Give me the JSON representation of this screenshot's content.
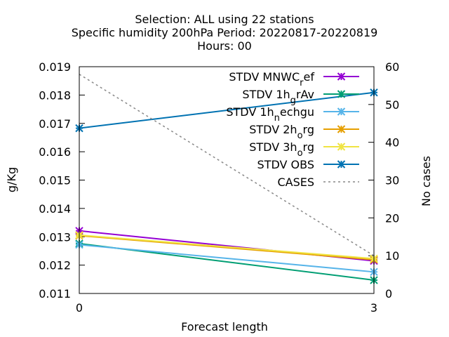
{
  "chart_data": {
    "type": "line",
    "title_lines": [
      "Selection: ALL using    22 stations",
      "Specific humidity 200hPa   Period: 20220817-20220819",
      "Hours:  00"
    ],
    "xlabel": "Forecast length",
    "ylabel": "g/Kg",
    "y2label": "No cases",
    "x": [
      0,
      3
    ],
    "xticks": [
      "0",
      "3"
    ],
    "xlim": [
      0,
      3
    ],
    "ylim": [
      0.011,
      0.019
    ],
    "yticks": [
      "0.011",
      "0.012",
      "0.013",
      "0.014",
      "0.015",
      "0.016",
      "0.017",
      "0.018",
      "0.019"
    ],
    "y2lim": [
      0,
      60
    ],
    "y2ticks": [
      "0",
      "10",
      "20",
      "30",
      "40",
      "50",
      "60"
    ],
    "grid": false,
    "legend_position": "top-right",
    "series": [
      {
        "legend": {
          "base": "STDV MNWC",
          "sub": "r",
          "tail": "ef"
        },
        "color": "#9400d3",
        "marker": "x-star",
        "axis": "y1",
        "values": [
          0.01321,
          0.01215
        ]
      },
      {
        "legend": {
          "base": "STDV 1h",
          "sub": "g",
          "tail": "rAv"
        },
        "color": "#009e73",
        "marker": "x-star",
        "axis": "y1",
        "values": [
          0.01276,
          0.01147
        ]
      },
      {
        "legend": {
          "base": "STDV 1h",
          "sub": "n",
          "tail": "echgu"
        },
        "color": "#56b4e9",
        "marker": "x-star",
        "axis": "y1",
        "values": [
          0.01272,
          0.01176
        ]
      },
      {
        "legend": {
          "base": "STDV 2h",
          "sub": "o",
          "tail": "rg"
        },
        "color": "#e69f00",
        "marker": "x-star",
        "axis": "y1",
        "values": [
          0.01304,
          0.01219
        ]
      },
      {
        "legend": {
          "base": "STDV 3h",
          "sub": "o",
          "tail": "rg"
        },
        "color": "#f0e442",
        "marker": "x-star",
        "axis": "y1",
        "values": [
          0.01306,
          0.01223
        ]
      },
      {
        "legend": {
          "base": "STDV OBS",
          "sub": "",
          "tail": ""
        },
        "color": "#0072b2",
        "marker": "x-star",
        "axis": "y1",
        "values": [
          0.01683,
          0.01809
        ]
      },
      {
        "legend": {
          "base": "CASES",
          "sub": "",
          "tail": ""
        },
        "color": "#888888",
        "marker": "none",
        "dashed": true,
        "axis": "y2",
        "values": [
          58,
          10
        ]
      }
    ]
  }
}
